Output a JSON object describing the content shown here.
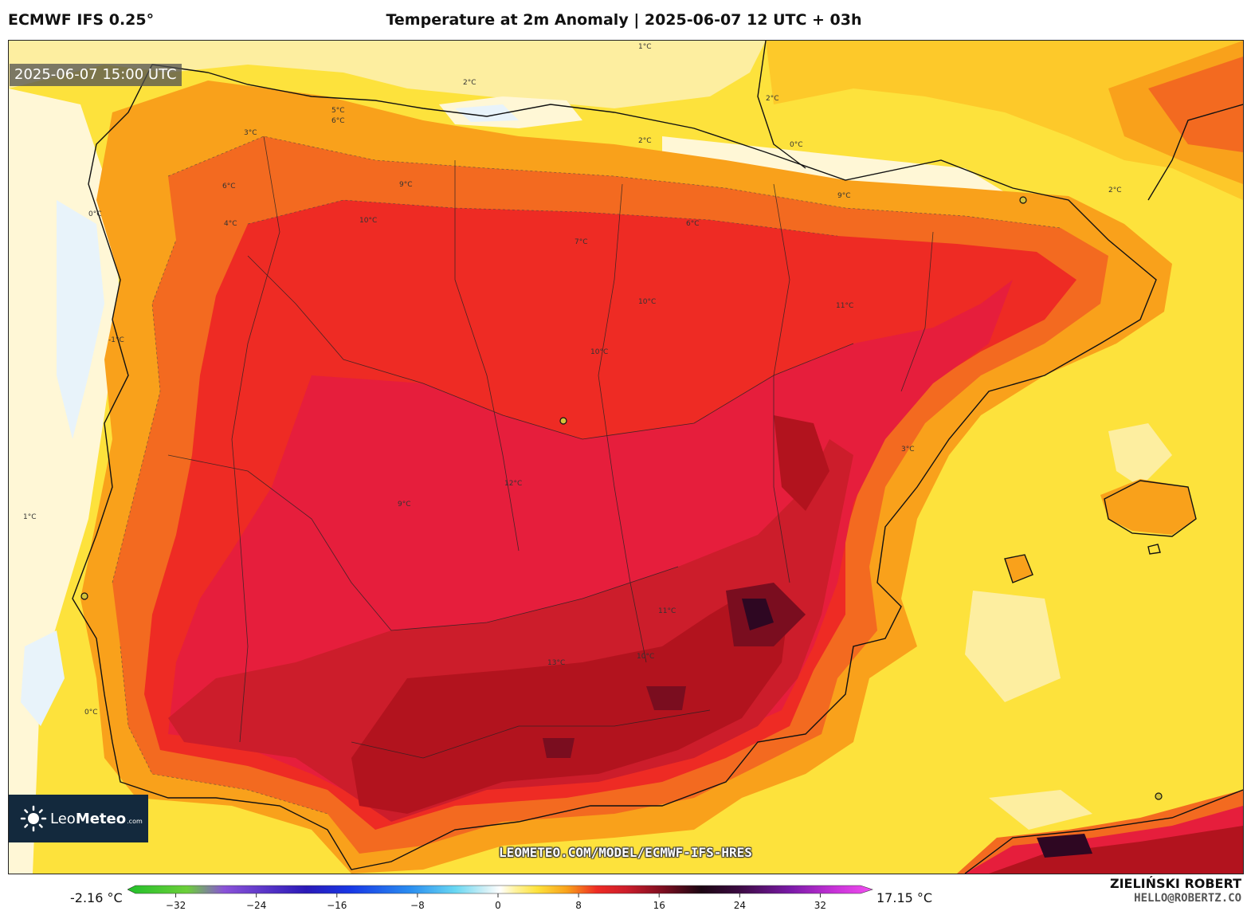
{
  "header": {
    "model": "ECMWF IFS 0.25°",
    "title": "Temperature at 2m Anomaly | 2025-06-07 12 UTC + 03h"
  },
  "valid_time": "2025-06-07 15:00 UTC",
  "watermark_url": "LEOMETEO.COM/MODEL/ECMWF-IFS-HRES",
  "logo": {
    "brand_light": "Leo",
    "brand_bold": "Meteo",
    "domain": ".com"
  },
  "legend": {
    "min_label": "-2.16 °C",
    "max_label": "17.15 °C",
    "ticks": [
      "−32",
      "−24",
      "−16",
      "−8",
      "0",
      "8",
      "16",
      "24",
      "32"
    ],
    "tick_values": [
      -32,
      -24,
      -16,
      -8,
      0,
      8,
      16,
      24,
      32
    ],
    "range": [
      -36,
      36
    ]
  },
  "credits": {
    "author": "ZIELIŃSKI ROBERT",
    "email": "HELLO@ROBERTZ.CO"
  },
  "contour_labels": [
    "1°C",
    "2°C",
    "2°C",
    "2°C",
    "5°C",
    "6°C",
    "3°C",
    "6°C",
    "4°C",
    "0°C",
    "9°C",
    "10°C",
    "7°C",
    "6°C",
    "9°C",
    "10°C",
    "10°C",
    "12°C",
    "11°C",
    "9°C",
    "11°C",
    "13°C",
    "10°C",
    "0°C",
    "0°C",
    "1°C",
    "2°C",
    "3°C",
    "-1°C"
  ],
  "cities": [
    "madrid-marker",
    "lisbon-marker",
    "barcelona-marker",
    "algiers-marker"
  ],
  "colors": {
    "sea_yellow": "#fde23c",
    "light_yellow": "#fdeea0",
    "pale": "#fff7d6",
    "orange": "#f9a11b",
    "red_orange": "#f36a20",
    "red": "#ee2b24",
    "crimson": "#d8192b",
    "dark_red": "#b2131e",
    "maroon": "#7a0d1f",
    "very_dark": "#2e0722"
  }
}
